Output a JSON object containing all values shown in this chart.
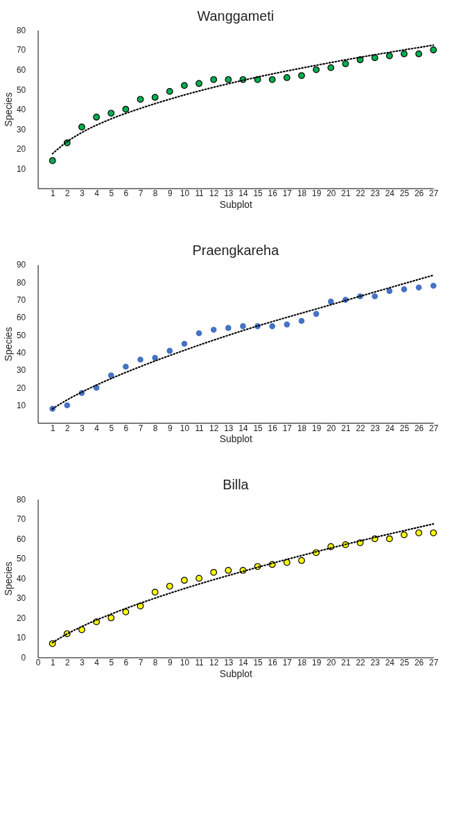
{
  "chart_data": [
    {
      "type": "scatter",
      "title": "Wanggameti",
      "xlabel": "Subplot",
      "ylabel": "Species",
      "xlim": [
        0,
        27
      ],
      "xticks": [
        1,
        2,
        3,
        4,
        5,
        6,
        7,
        8,
        9,
        10,
        11,
        12,
        13,
        14,
        15,
        16,
        17,
        18,
        19,
        20,
        21,
        22,
        23,
        24,
        25,
        26,
        27
      ],
      "ylim": [
        0,
        80
      ],
      "yticks": [
        10,
        20,
        30,
        40,
        50,
        60,
        70,
        80
      ],
      "grid": false,
      "x": [
        1,
        2,
        3,
        4,
        5,
        6,
        7,
        8,
        9,
        10,
        11,
        12,
        13,
        14,
        15,
        16,
        17,
        18,
        19,
        20,
        21,
        22,
        23,
        24,
        25,
        26,
        27
      ],
      "series": [
        {
          "marker": "circle",
          "color": "#00b050",
          "values": [
            14,
            23,
            31,
            36,
            38,
            40,
            45,
            46,
            49,
            52,
            53,
            55,
            55,
            55,
            55,
            55,
            56,
            57,
            60,
            61,
            63,
            65,
            66,
            67,
            68,
            68,
            70
          ]
        },
        {
          "type": "line",
          "color": "#000000",
          "line_style": "dotted",
          "x": [
            1,
            2,
            3,
            5,
            7,
            10,
            14,
            20,
            27
          ],
          "values": [
            17.5,
            23.6,
            28.2,
            35.1,
            40.4,
            47.2,
            54.6,
            63.6,
            72.4
          ]
        }
      ]
    },
    {
      "type": "scatter",
      "title": "Praengkareha",
      "xlabel": "Subplot",
      "ylabel": "Species",
      "xlim": [
        0,
        27
      ],
      "xticks": [
        1,
        2,
        3,
        4,
        5,
        6,
        7,
        8,
        9,
        10,
        11,
        12,
        13,
        14,
        15,
        16,
        17,
        18,
        19,
        20,
        21,
        22,
        23,
        24,
        25,
        26,
        27
      ],
      "ylim": [
        0,
        90
      ],
      "yticks": [
        10,
        20,
        30,
        40,
        50,
        60,
        70,
        80,
        90
      ],
      "grid": false,
      "x": [
        1,
        2,
        3,
        4,
        5,
        6,
        7,
        8,
        9,
        10,
        11,
        12,
        13,
        14,
        15,
        16,
        17,
        18,
        19,
        20,
        21,
        22,
        23,
        24,
        25,
        26,
        27
      ],
      "series": [
        {
          "marker": "circle",
          "color": "#4472c4",
          "values": [
            8,
            10,
            17,
            20,
            27,
            32,
            36,
            37,
            41,
            45,
            51,
            53,
            54,
            55,
            55,
            55,
            56,
            58,
            62,
            69,
            70,
            72,
            72,
            75,
            76,
            77,
            78
          ]
        },
        {
          "type": "line",
          "color": "#000000",
          "line_style": "dotted",
          "x": [
            1,
            2,
            3,
            5,
            7,
            10,
            14,
            20,
            27
          ],
          "values": [
            8,
            13.1,
            17.5,
            25.2,
            32.0,
            41.3,
            52.5,
            67.2,
            84
          ]
        }
      ]
    },
    {
      "type": "scatter",
      "title": "Billa",
      "xlabel": "Subplot",
      "ylabel": "Species",
      "xlim": [
        0,
        27
      ],
      "xticks": [
        0,
        1,
        2,
        3,
        4,
        5,
        6,
        7,
        8,
        9,
        10,
        11,
        12,
        13,
        14,
        15,
        16,
        17,
        18,
        19,
        20,
        21,
        22,
        23,
        24,
        25,
        26,
        27
      ],
      "ylim": [
        0,
        80
      ],
      "yticks": [
        0,
        10,
        20,
        30,
        40,
        50,
        60,
        70,
        80
      ],
      "grid": false,
      "x": [
        1,
        2,
        3,
        4,
        5,
        6,
        7,
        8,
        9,
        10,
        11,
        12,
        13,
        14,
        15,
        16,
        17,
        18,
        19,
        20,
        21,
        22,
        23,
        24,
        25,
        26,
        27
      ],
      "series": [
        {
          "marker": "circle",
          "color": "#ffff00",
          "values": [
            7,
            12,
            14,
            18,
            20,
            23,
            26,
            33,
            36,
            39,
            40,
            43,
            44,
            44,
            46,
            47,
            48,
            49,
            53,
            56,
            57,
            58,
            60,
            60,
            62,
            63,
            63
          ]
        },
        {
          "type": "line",
          "color": "#000000",
          "line_style": "dotted",
          "x": [
            1,
            2,
            3,
            5,
            7,
            10,
            14,
            20,
            27
          ],
          "values": [
            7.5,
            11.9,
            15.6,
            21.9,
            27.4,
            34.8,
            43.5,
            55.3,
            67.5
          ]
        }
      ]
    }
  ]
}
